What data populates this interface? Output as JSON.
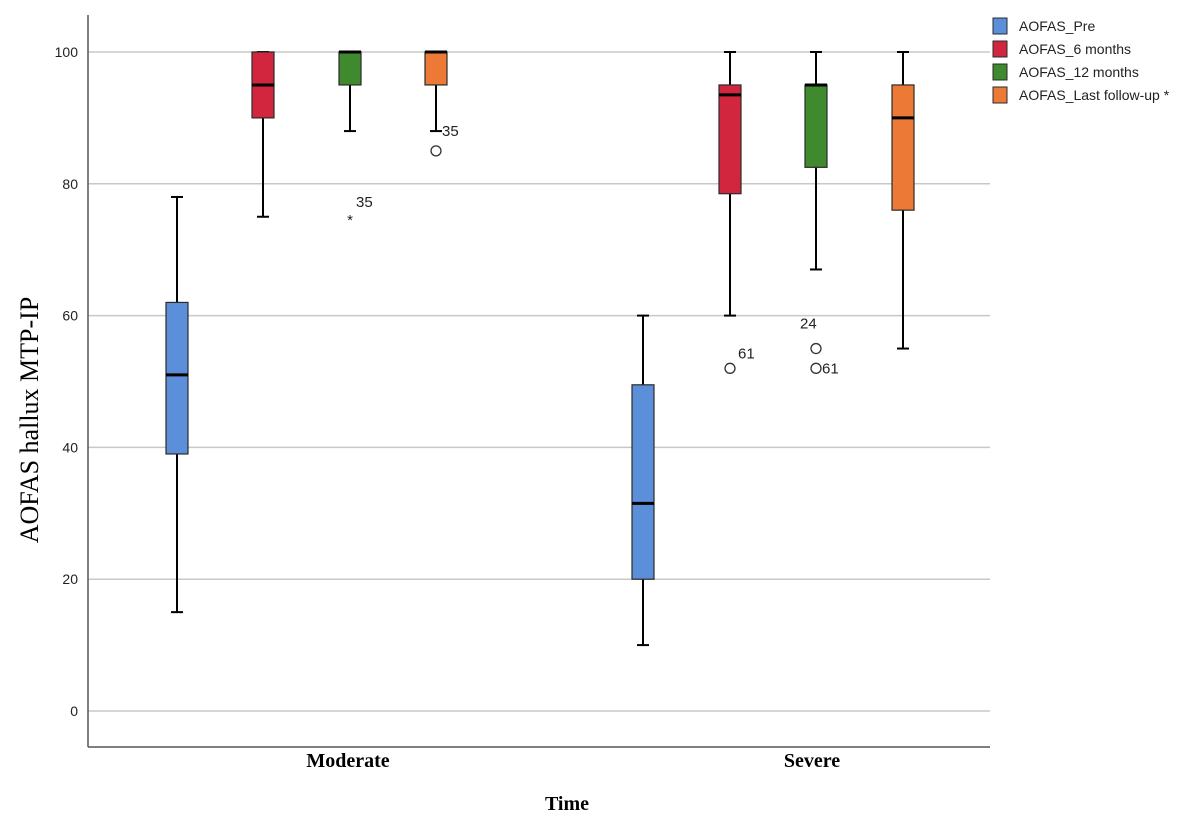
{
  "chart_data": {
    "type": "boxplot",
    "title": "",
    "xlabel": "Time",
    "ylabel": "AOFAS hallux MTP-IP",
    "ylim": [
      -5,
      105
    ],
    "yticks": [
      0,
      20,
      40,
      60,
      80,
      100
    ],
    "grid": true,
    "legend_position": "top-right",
    "categories": [
      "Moderate",
      "Severe"
    ],
    "series": [
      {
        "name": "AOFAS_Pre",
        "color": "#5b8fd9",
        "boxes": [
          {
            "category": "Moderate",
            "whisker_low": 15,
            "q1": 39,
            "median": 51,
            "q3": 62,
            "whisker_high": 78,
            "outliers": []
          },
          {
            "category": "Severe",
            "whisker_low": 10,
            "q1": 20,
            "median": 31.5,
            "q3": 49.5,
            "whisker_high": 60,
            "outliers": []
          }
        ]
      },
      {
        "name": "AOFAS_6 months",
        "color": "#d1263d",
        "boxes": [
          {
            "category": "Moderate",
            "whisker_low": 75,
            "q1": 90,
            "median": 95,
            "q3": 100,
            "whisker_high": 100,
            "outliers": []
          },
          {
            "category": "Severe",
            "whisker_low": 60,
            "q1": 78.5,
            "median": 93.5,
            "q3": 95,
            "whisker_high": 100,
            "outliers": [
              {
                "value": 52,
                "label": "61",
                "marker": "circle"
              }
            ]
          }
        ]
      },
      {
        "name": "AOFAS_12 months",
        "color": "#3f8a2e",
        "boxes": [
          {
            "category": "Moderate",
            "whisker_low": 88,
            "q1": 95,
            "median": 100,
            "q3": 100,
            "whisker_high": 100,
            "outliers": [
              {
                "value": 75,
                "label": "35",
                "marker": "star"
              }
            ]
          },
          {
            "category": "Severe",
            "whisker_low": 67,
            "q1": 82.5,
            "median": 95,
            "q3": 95,
            "whisker_high": 100,
            "outliers": [
              {
                "value": 55,
                "label": "24",
                "marker": "circle"
              },
              {
                "value": 52,
                "label": "61",
                "marker": "circle"
              }
            ]
          }
        ]
      },
      {
        "name": "AOFAS_Last follow-up *",
        "color": "#ec7a36",
        "boxes": [
          {
            "category": "Moderate",
            "whisker_low": 88,
            "q1": 95,
            "median": 100,
            "q3": 100,
            "whisker_high": 100,
            "outliers": [
              {
                "value": 85,
                "label": "35",
                "marker": "circle"
              }
            ]
          },
          {
            "category": "Severe",
            "whisker_low": 55,
            "q1": 76,
            "median": 90,
            "q3": 95,
            "whisker_high": 100,
            "outliers": []
          }
        ]
      }
    ]
  }
}
